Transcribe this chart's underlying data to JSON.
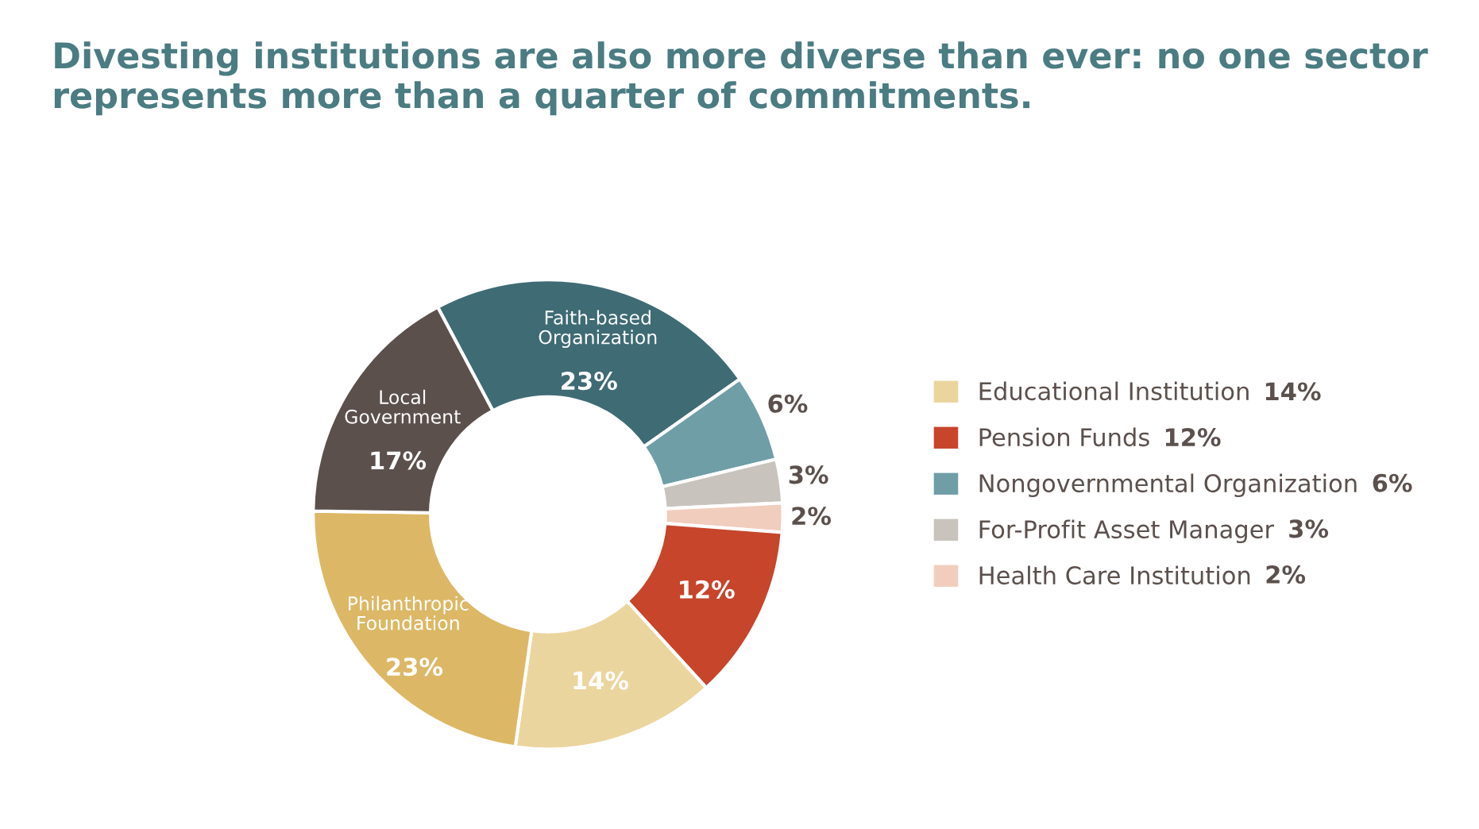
{
  "chart_data": {
    "type": "donut",
    "title": "Divesting institutions are also more diverse than ever: no one sector represents more than a quarter of commitments.",
    "categories": [
      "Faith-based Organization",
      "Nongovernmental Organization",
      "For-Profit Asset Manager",
      "Health Care Institution",
      "Pension Funds",
      "Educational Institution",
      "Philanthropic Foundation",
      "Local Government"
    ],
    "values": [
      23,
      6,
      3,
      2,
      12,
      14,
      23,
      17
    ],
    "colors": [
      "#3f6b74",
      "#6f9ea7",
      "#c8c3bc",
      "#f1cdbd",
      "#c6452b",
      "#ebd59e",
      "#dcb866",
      "#5b504c"
    ],
    "value_labels": [
      "23%",
      "6%",
      "3%",
      "2%",
      "12%",
      "14%",
      "23%",
      "17%"
    ],
    "legend": "right"
  }
}
